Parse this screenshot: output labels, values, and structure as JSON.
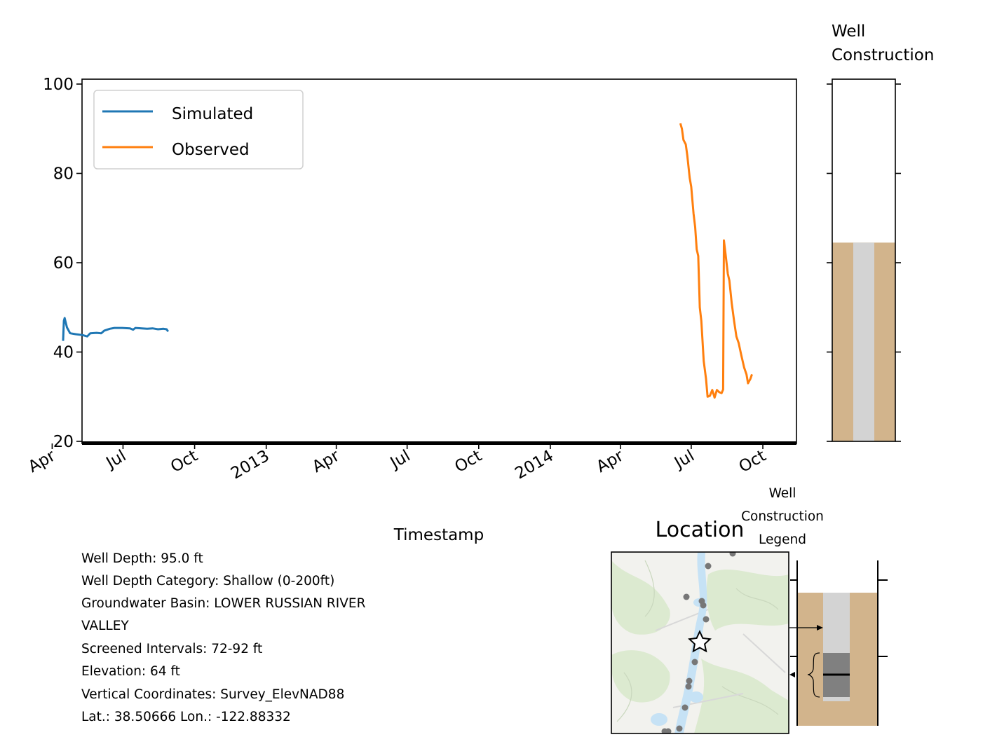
{
  "chart_data": [
    {
      "type": "line",
      "title": "",
      "xlabel": "Timestamp",
      "ylabel": "",
      "ylim": [
        20,
        100
      ],
      "yticks": [
        20,
        40,
        60,
        80,
        100
      ],
      "xticks": [
        {
          "date": "2012-04-01",
          "label": "Apr"
        },
        {
          "date": "2012-07-01",
          "label": "Jul"
        },
        {
          "date": "2012-10-01",
          "label": "Oct"
        },
        {
          "date": "2013-01-01",
          "label": "2013"
        },
        {
          "date": "2013-04-01",
          "label": "Apr"
        },
        {
          "date": "2013-07-01",
          "label": "Jul"
        },
        {
          "date": "2013-10-01",
          "label": "Oct"
        },
        {
          "date": "2014-01-01",
          "label": "2014"
        },
        {
          "date": "2014-04-01",
          "label": "Apr"
        },
        {
          "date": "2014-07-01",
          "label": "Jul"
        },
        {
          "date": "2014-10-01",
          "label": "Oct"
        }
      ],
      "xlim": [
        "2012-03-01",
        "2014-11-15"
      ],
      "legend": "top-left",
      "grid": false,
      "series": [
        {
          "name": "Simulated",
          "color": "#1f77b4",
          "points": [
            [
              "2012-04-15",
              42.5
            ],
            [
              "2012-04-16",
              47.0
            ],
            [
              "2012-04-17",
              47.6
            ],
            [
              "2012-04-20",
              45.5
            ],
            [
              "2012-04-24",
              44.2
            ],
            [
              "2012-05-01",
              44.0
            ],
            [
              "2012-05-10",
              43.8
            ],
            [
              "2012-05-16",
              43.5
            ],
            [
              "2012-05-20",
              44.2
            ],
            [
              "2012-05-28",
              44.3
            ],
            [
              "2012-06-03",
              44.2
            ],
            [
              "2012-06-07",
              44.8
            ],
            [
              "2012-06-14",
              45.2
            ],
            [
              "2012-06-20",
              45.4
            ],
            [
              "2012-06-30",
              45.4
            ],
            [
              "2012-07-10",
              45.3
            ],
            [
              "2012-07-14",
              45.0
            ],
            [
              "2012-07-17",
              45.4
            ],
            [
              "2012-07-25",
              45.3
            ],
            [
              "2012-08-01",
              45.2
            ],
            [
              "2012-08-08",
              45.3
            ],
            [
              "2012-08-15",
              45.1
            ],
            [
              "2012-08-22",
              45.2
            ],
            [
              "2012-08-26",
              45.1
            ],
            [
              "2012-08-28",
              44.6
            ]
          ]
        },
        {
          "name": "Observed",
          "color": "#ff7f0e",
          "points": [
            [
              "2014-06-17",
              91.2
            ],
            [
              "2014-06-19",
              90.0
            ],
            [
              "2014-06-21",
              87.5
            ],
            [
              "2014-06-24",
              86.5
            ],
            [
              "2014-06-26",
              84.0
            ],
            [
              "2014-06-29",
              79.0
            ],
            [
              "2014-07-01",
              77.0
            ],
            [
              "2014-07-04",
              71.0
            ],
            [
              "2014-07-06",
              68.0
            ],
            [
              "2014-07-08",
              63.0
            ],
            [
              "2014-07-10",
              61.5
            ],
            [
              "2014-07-12",
              50.0
            ],
            [
              "2014-07-14",
              47.0
            ],
            [
              "2014-07-17",
              38.0
            ],
            [
              "2014-07-20",
              34.0
            ],
            [
              "2014-07-22",
              30.0
            ],
            [
              "2014-07-25",
              30.2
            ],
            [
              "2014-07-28",
              31.5
            ],
            [
              "2014-07-31",
              29.8
            ],
            [
              "2014-08-03",
              31.5
            ],
            [
              "2014-08-06",
              31.0
            ],
            [
              "2014-08-09",
              30.8
            ],
            [
              "2014-08-11",
              31.6
            ],
            [
              "2014-08-12",
              65.0
            ],
            [
              "2014-08-14",
              62.0
            ],
            [
              "2014-08-17",
              57.5
            ],
            [
              "2014-08-19",
              56.0
            ],
            [
              "2014-08-22",
              51.0
            ],
            [
              "2014-08-25",
              47.0
            ],
            [
              "2014-08-28",
              43.5
            ],
            [
              "2014-08-31",
              42.0
            ],
            [
              "2014-09-03",
              39.5
            ],
            [
              "2014-09-07",
              36.5
            ],
            [
              "2014-09-10",
              35.0
            ],
            [
              "2014-09-12",
              33.0
            ],
            [
              "2014-09-15",
              34.0
            ],
            [
              "2014-09-17",
              35.0
            ]
          ]
        }
      ]
    },
    {
      "type": "well-construction",
      "title": "Well\nConstruction",
      "ylim": [
        20,
        100
      ],
      "colors": {
        "soil": "#d2b48c",
        "casing": "#d3d3d3"
      },
      "soil_top": 64.5
    }
  ],
  "info_lines": [
    "Well Depth: 95.0 ft",
    "Well Depth Category: Shallow (0-200ft)",
    "Groundwater Basin: LOWER RUSSIAN RIVER",
    "VALLEY",
    "Screened Intervals: 72-92 ft",
    "Elevation: 64 ft",
    "Vertical Coordinates: Survey_ElevNAD88",
    "Lat.: 38.50666 Lon.: -122.88332"
  ],
  "location_map": {
    "title": "Location",
    "marker": "star-icon",
    "colors": {
      "land": "#f2f2ee",
      "vegetation": "#dcead0",
      "river": "#c6e2f5",
      "dots": "#777777"
    }
  },
  "legend_diagram": {
    "title_lines": [
      "Well",
      "Construction",
      "Legend"
    ],
    "colors": {
      "soil": "#d2b48c",
      "casing": "#d3d3d3",
      "screen": "#808080"
    }
  }
}
